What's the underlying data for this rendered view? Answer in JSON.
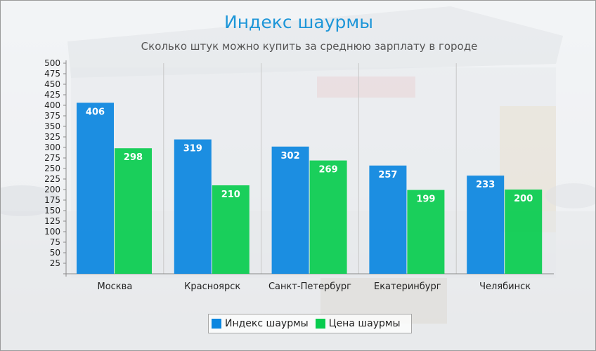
{
  "chart_data": {
    "type": "bar",
    "title": "Индекс шаурмы",
    "subtitle": "Сколько штук можно купить за среднюю зарплату в городе",
    "categories": [
      "Москва",
      "Красноярск",
      "Санкт-Петербург",
      "Екатеринбург",
      "Челябинск"
    ],
    "series": [
      {
        "name": "Индекс шаурмы",
        "values": [
          406,
          319,
          302,
          257,
          233
        ],
        "color": "#0a86e0"
      },
      {
        "name": "Цена шаурмы",
        "values": [
          298,
          210,
          269,
          199,
          200
        ],
        "color": "#08cc4e"
      }
    ],
    "ylim": [
      0,
      500
    ],
    "yticks": [
      25,
      50,
      75,
      100,
      125,
      150,
      175,
      200,
      225,
      250,
      275,
      300,
      325,
      350,
      375,
      400,
      425,
      450,
      475,
      500
    ],
    "grid": "vertical separators",
    "legend": "bottom-center",
    "data_labels": true,
    "background": "faded photo of a shawarma kiosk"
  }
}
